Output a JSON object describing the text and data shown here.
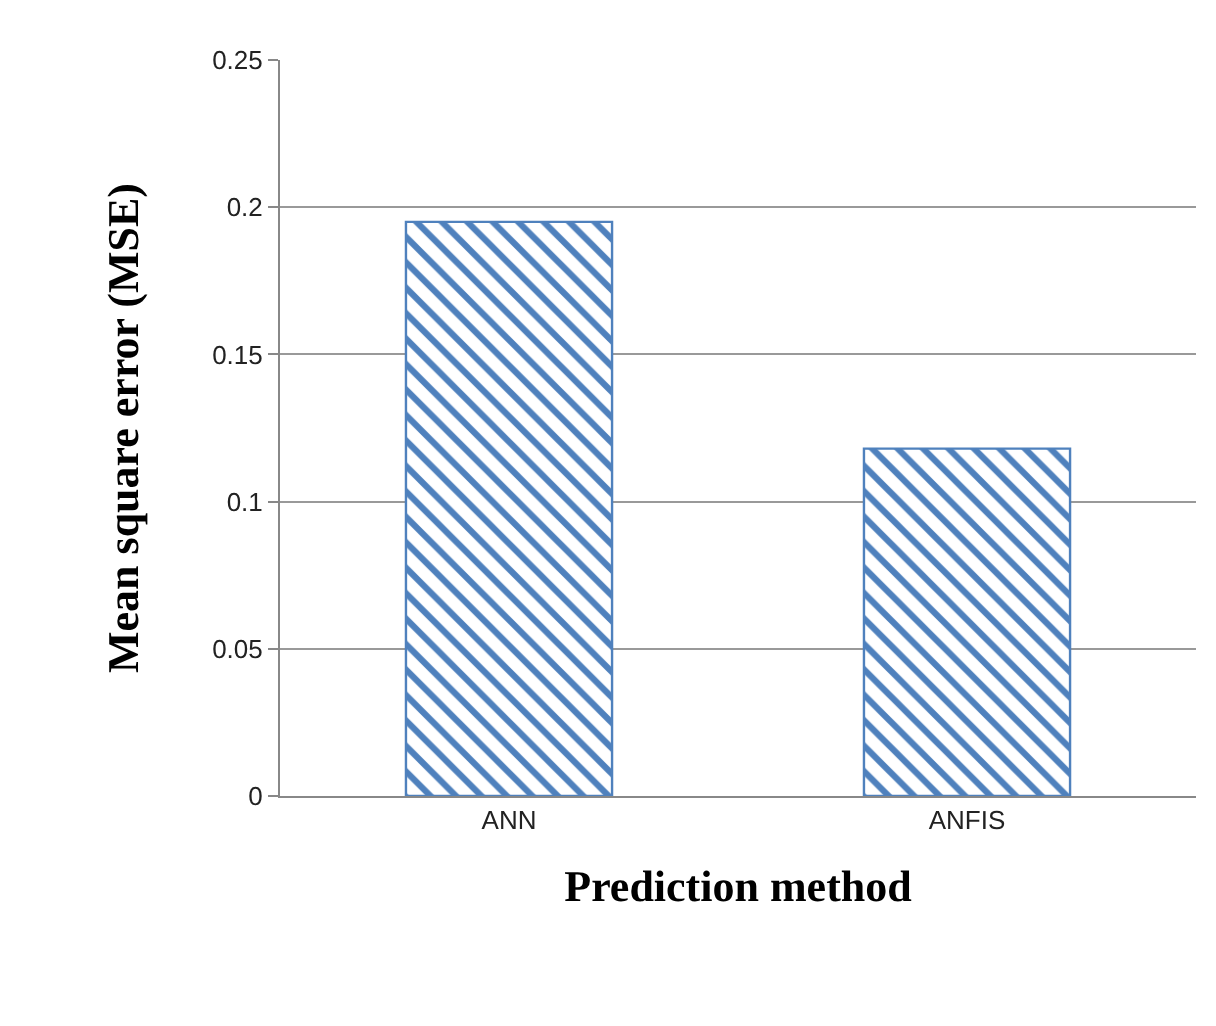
{
  "chart_data": {
    "type": "bar",
    "xlabel": "Prediction method",
    "ylabel": "Mean square error (MSE)",
    "categories": [
      "ANN",
      "ANFIS"
    ],
    "values": [
      0.195,
      0.118
    ],
    "color": "#4f81bd",
    "ylim": [
      0,
      0.25
    ],
    "yticks": [
      0,
      0.05,
      0.1,
      0.15,
      0.2,
      0.25
    ],
    "grid": "y"
  }
}
